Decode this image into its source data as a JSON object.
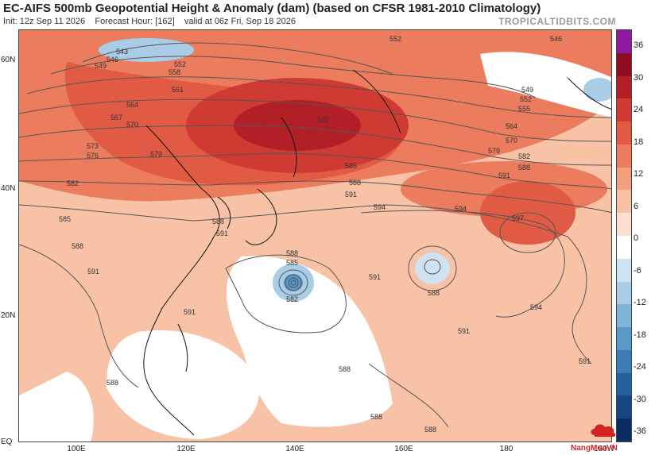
{
  "header": {
    "title": "EC-AIFS 500mb Geopotential Height & Anomaly (dam) (based on CFSR 1981-2010 Climatology)",
    "init": "Init: 12z Sep 11 2026",
    "forecast_hour": "Forecast Hour: [162]",
    "valid": "valid at 06z Fri, Sep 18 2026",
    "brand": "TROPICALTIDBITS.COM"
  },
  "map": {
    "lat_labels": [
      "60N",
      "40N",
      "20N",
      "EQ"
    ],
    "lon_labels": [
      "100E",
      "120E",
      "140E",
      "160E",
      "180",
      "160W"
    ],
    "contour_labels": [
      "543",
      "546",
      "549",
      "552",
      "555",
      "558",
      "561",
      "564",
      "567",
      "570",
      "573",
      "576",
      "579",
      "582",
      "585",
      "588",
      "591",
      "594",
      "597"
    ],
    "contour_color": "#555555",
    "coast_color": "#111111"
  },
  "colorbar": {
    "labels": [
      "36",
      "30",
      "24",
      "18",
      "12",
      "6",
      "0",
      "-6",
      "-12",
      "-18",
      "-24",
      "-30",
      "-36"
    ],
    "swatches": [
      "#8b1aa0",
      "#8e0d1e",
      "#b31f26",
      "#cf3b33",
      "#e05a44",
      "#ec7c5e",
      "#f4a080",
      "#f8c2a6",
      "#fbe0d0",
      "#ffffff",
      "#cfe2f0",
      "#a9cde6",
      "#7fb4d8",
      "#5a98c8",
      "#3b7cb6",
      "#24609e",
      "#184685",
      "#0c2c66"
    ]
  },
  "watermark": {
    "text": "NangMuaVN",
    "color": "#d22222"
  }
}
